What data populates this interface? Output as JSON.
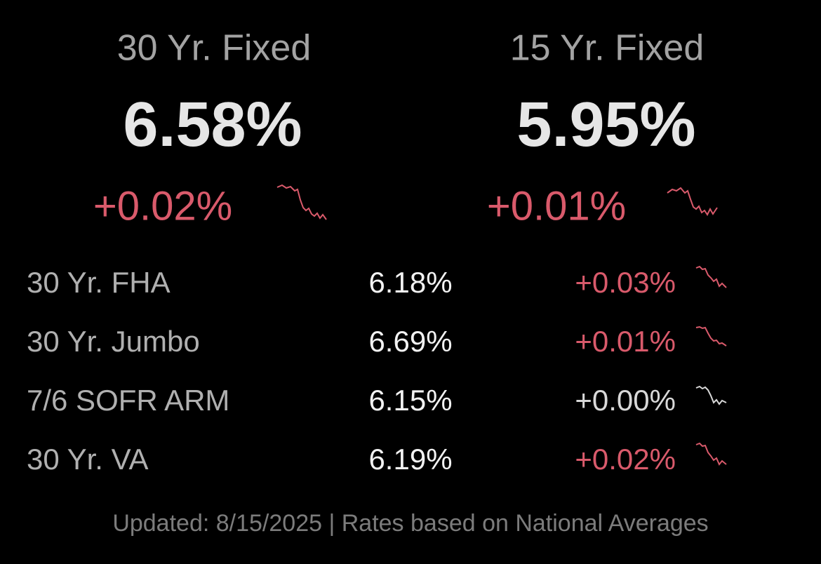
{
  "featured": [
    {
      "label": "30 Yr. Fixed",
      "rate": "6.58%",
      "change": "+0.02%"
    },
    {
      "label": "15 Yr. Fixed",
      "rate": "5.95%",
      "change": "+0.01%"
    }
  ],
  "rows": [
    {
      "label": "30 Yr. FHA",
      "rate": "6.18%",
      "change": "+0.03%"
    },
    {
      "label": "30 Yr. Jumbo",
      "rate": "6.69%",
      "change": "+0.01%"
    },
    {
      "label": "7/6 SOFR ARM",
      "rate": "6.15%",
      "change": "+0.00%"
    },
    {
      "label": "30 Yr. VA",
      "rate": "6.19%",
      "change": "+0.02%"
    }
  ],
  "footer": "Updated: 8/15/2025 | Rates based on National Averages"
}
